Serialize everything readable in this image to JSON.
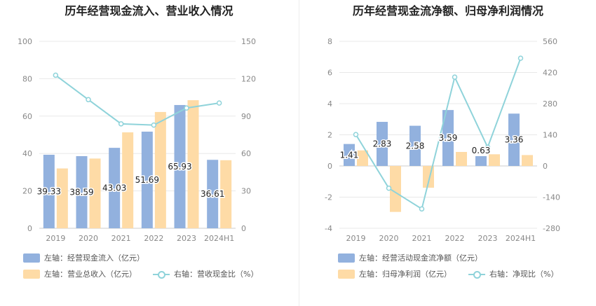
{
  "colors": {
    "bar1": "#92b1de",
    "bar2": "#fedba6",
    "line": "#8fd3da",
    "axis_text": "#888888",
    "grid": "#e8e8e8"
  },
  "left": {
    "title": "历年经营现金流入、营业收入情况",
    "legend": [
      "左轴：经营现金流入（亿元）",
      "左轴：营业总收入（亿元）",
      "右轴：营收现金比（%）"
    ]
  },
  "right": {
    "title": "历年经营现金流净额、归母净利润情况",
    "legend": [
      "左轴：经营活动现金流净额（亿元）",
      "左轴：归母净利润（亿元）",
      "右轴：净现比（%）"
    ]
  },
  "chart_data": [
    {
      "type": "bar",
      "categories": [
        "2019",
        "2020",
        "2021",
        "2022",
        "2023",
        "2024H1"
      ],
      "ylim": [
        0,
        100
      ],
      "yticks": [
        "0",
        "20",
        "40",
        "60",
        "80",
        "100"
      ],
      "y2lim": [
        0,
        150
      ],
      "y2ticks": [
        "0",
        "30",
        "60",
        "90",
        "120",
        "150"
      ],
      "series": [
        {
          "name": "左轴：经营现金流入（亿元）",
          "kind": "bar",
          "axis": "left",
          "values": [
            39.33,
            38.59,
            43.03,
            51.69,
            65.93,
            36.61
          ],
          "labels": [
            "39.33",
            "38.59",
            "43.03",
            "51.69",
            "65.93",
            "36.61"
          ]
        },
        {
          "name": "左轴：营业总收入（亿元）",
          "kind": "bar",
          "axis": "left",
          "values": [
            32,
            37.3,
            51.3,
            62.2,
            68.5,
            36.4
          ]
        },
        {
          "name": "右轴：营收现金比（%）",
          "kind": "line",
          "axis": "right",
          "values": [
            122.8,
            103.2,
            83.8,
            82.8,
            96.5,
            100.5
          ]
        }
      ]
    },
    {
      "type": "bar",
      "categories": [
        "2019",
        "2020",
        "2021",
        "2022",
        "2023",
        "2024H1"
      ],
      "ylim": [
        -4,
        8
      ],
      "yticks": [
        "-4",
        "-2",
        "0",
        "2",
        "4",
        "6",
        "8"
      ],
      "y2lim": [
        -280,
        560
      ],
      "y2ticks": [
        "-280",
        "-140",
        "0",
        "140",
        "280",
        "420",
        "560"
      ],
      "series": [
        {
          "name": "左轴：经营活动现金流净额（亿元）",
          "kind": "bar",
          "axis": "left",
          "values": [
            1.41,
            2.83,
            2.58,
            3.59,
            0.63,
            3.36
          ],
          "labels": [
            "1.41",
            "2.83",
            "2.58",
            "3.59",
            "0.63",
            "3.36"
          ]
        },
        {
          "name": "左轴：归母净利润（亿元）",
          "kind": "bar",
          "axis": "left",
          "values": [
            1.0,
            -2.95,
            -1.4,
            0.9,
            0.75,
            0.7
          ]
        },
        {
          "name": "右轴：净现比（%）",
          "kind": "line",
          "axis": "right",
          "values": [
            141,
            -100,
            -193,
            399,
            84,
            484
          ]
        }
      ]
    }
  ]
}
